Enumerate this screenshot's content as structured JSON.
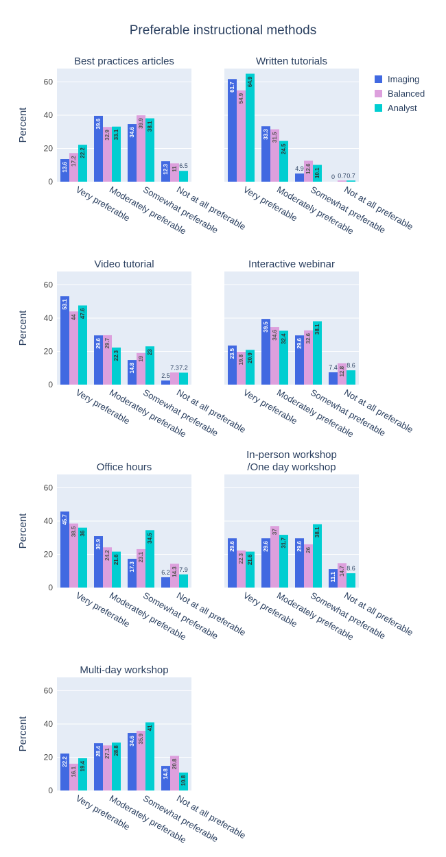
{
  "chart_data": {
    "type": "bar",
    "title": "Preferable instructional methods",
    "ylabel": "Percent",
    "ylim": [
      0,
      68
    ],
    "yticks": [
      0,
      20,
      40,
      60
    ],
    "categories": [
      "Very preferable",
      "Moderately preferable",
      "Somewhat preferable",
      "Not at all preferable"
    ],
    "legend": {
      "position": "top-right",
      "entries": [
        "Imaging",
        "Balanced",
        "Analyst"
      ]
    },
    "colors": {
      "Imaging": "#4169E1",
      "Balanced": "#DDA0DD",
      "Analyst": "#00CED1",
      "plot_bg": "#E5ECF6",
      "grid": "#FFFFFF"
    },
    "panels": [
      {
        "title_lines": [
          "Best practices articles"
        ],
        "series": [
          {
            "name": "Imaging",
            "values": [
              13.6,
              39.6,
              34.6,
              12.3
            ]
          },
          {
            "name": "Balanced",
            "values": [
              17.2,
              32.9,
              39.9,
              11
            ]
          },
          {
            "name": "Analyst",
            "values": [
              22.2,
              33.1,
              38.1,
              6.5
            ]
          }
        ]
      },
      {
        "title_lines": [
          "Written tutorials"
        ],
        "series": [
          {
            "name": "Imaging",
            "values": [
              61.7,
              33.3,
              4.9,
              0
            ]
          },
          {
            "name": "Balanced",
            "values": [
              54.9,
              31.5,
              12.6,
              0.7
            ]
          },
          {
            "name": "Analyst",
            "values": [
              64.9,
              24.5,
              10.1,
              0.7
            ]
          }
        ]
      },
      {
        "title_lines": [
          "Video tutorial"
        ],
        "series": [
          {
            "name": "Imaging",
            "values": [
              53.1,
              29.6,
              14.8,
              2.5
            ]
          },
          {
            "name": "Balanced",
            "values": [
              44,
              29.7,
              19,
              7.3
            ]
          },
          {
            "name": "Analyst",
            "values": [
              47.6,
              22.3,
              23,
              7.2
            ]
          }
        ]
      },
      {
        "title_lines": [
          "Interactive webinar"
        ],
        "series": [
          {
            "name": "Imaging",
            "values": [
              23.5,
              39.5,
              29.6,
              7.4
            ]
          },
          {
            "name": "Balanced",
            "values": [
              19.8,
              34.6,
              32.6,
              12.8
            ]
          },
          {
            "name": "Analyst",
            "values": [
              20.9,
              32.4,
              38.1,
              8.6
            ]
          }
        ]
      },
      {
        "title_lines": [
          "Office hours"
        ],
        "series": [
          {
            "name": "Imaging",
            "values": [
              45.7,
              30.9,
              17.3,
              6.2
            ]
          },
          {
            "name": "Balanced",
            "values": [
              38.5,
              24.2,
              23.1,
              14.3
            ]
          },
          {
            "name": "Analyst",
            "values": [
              36,
              21.6,
              34.5,
              7.9
            ]
          }
        ]
      },
      {
        "title_lines": [
          "In-person workshop",
          "/One day workshop"
        ],
        "series": [
          {
            "name": "Imaging",
            "values": [
              29.6,
              29.6,
              29.6,
              11.1
            ]
          },
          {
            "name": "Balanced",
            "values": [
              22.3,
              37,
              26,
              14.7
            ]
          },
          {
            "name": "Analyst",
            "values": [
              21.6,
              31.7,
              38.1,
              8.6
            ]
          }
        ]
      },
      {
        "title_lines": [
          "Multi-day workshop"
        ],
        "series": [
          {
            "name": "Imaging",
            "values": [
              22.2,
              28.4,
              34.6,
              14.8
            ]
          },
          {
            "name": "Balanced",
            "values": [
              16.1,
              27.1,
              35.9,
              20.8
            ]
          },
          {
            "name": "Analyst",
            "values": [
              19.4,
              28.8,
              41,
              10.8
            ]
          }
        ]
      }
    ]
  }
}
